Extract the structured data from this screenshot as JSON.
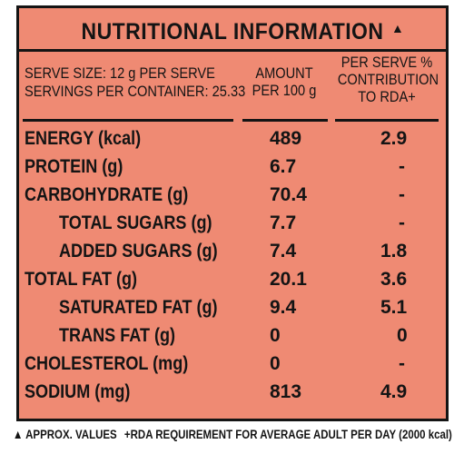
{
  "title": "NUTRITIONAL INFORMATION",
  "title_mark": "▲",
  "header": {
    "serve_line1": "SERVE SIZE: 12 g  PER SERVE",
    "serve_line2": "SERVINGS PER CONTAINER: 25.33",
    "amount_line1": "AMOUNT",
    "amount_line2": "PER 100 g",
    "rda_line1": "PER SERVE %",
    "rda_line2": "CONTRIBUTION",
    "rda_line3": "TO RDA+"
  },
  "rows": [
    {
      "name": "ENERGY (kcal)",
      "amount": "489",
      "rda": "2.9",
      "indent": false
    },
    {
      "name": "PROTEIN (g)",
      "amount": "6.7",
      "rda": "-",
      "indent": false
    },
    {
      "name": "CARBOHYDRATE (g)",
      "amount": "70.4",
      "rda": "-",
      "indent": false
    },
    {
      "name": "TOTAL SUGARS (g)",
      "amount": "7.7",
      "rda": "-",
      "indent": true
    },
    {
      "name": "ADDED SUGARS (g)",
      "amount": "7.4",
      "rda": "1.8",
      "indent": true
    },
    {
      "name": "TOTAL FAT (g)",
      "amount": "20.1",
      "rda": "3.6",
      "indent": false
    },
    {
      "name": "SATURATED FAT (g)",
      "amount": "9.4",
      "rda": "5.1",
      "indent": true
    },
    {
      "name": "TRANS FAT (g)",
      "amount": "0",
      "rda": "0",
      "indent": true
    },
    {
      "name": "CHOLESTEROL (mg)",
      "amount": "0",
      "rda": "-",
      "indent": false
    },
    {
      "name": "SODIUM (mg)",
      "amount": "813",
      "rda": "4.9",
      "indent": false
    }
  ],
  "footnote_left": "▲ APPROX. VALUES",
  "footnote_right": "+RDA REQUIREMENT FOR AVERAGE ADULT PER DAY (2000 kcal)",
  "colors": {
    "panel_background": "#ef8a73",
    "ink": "#141414"
  }
}
